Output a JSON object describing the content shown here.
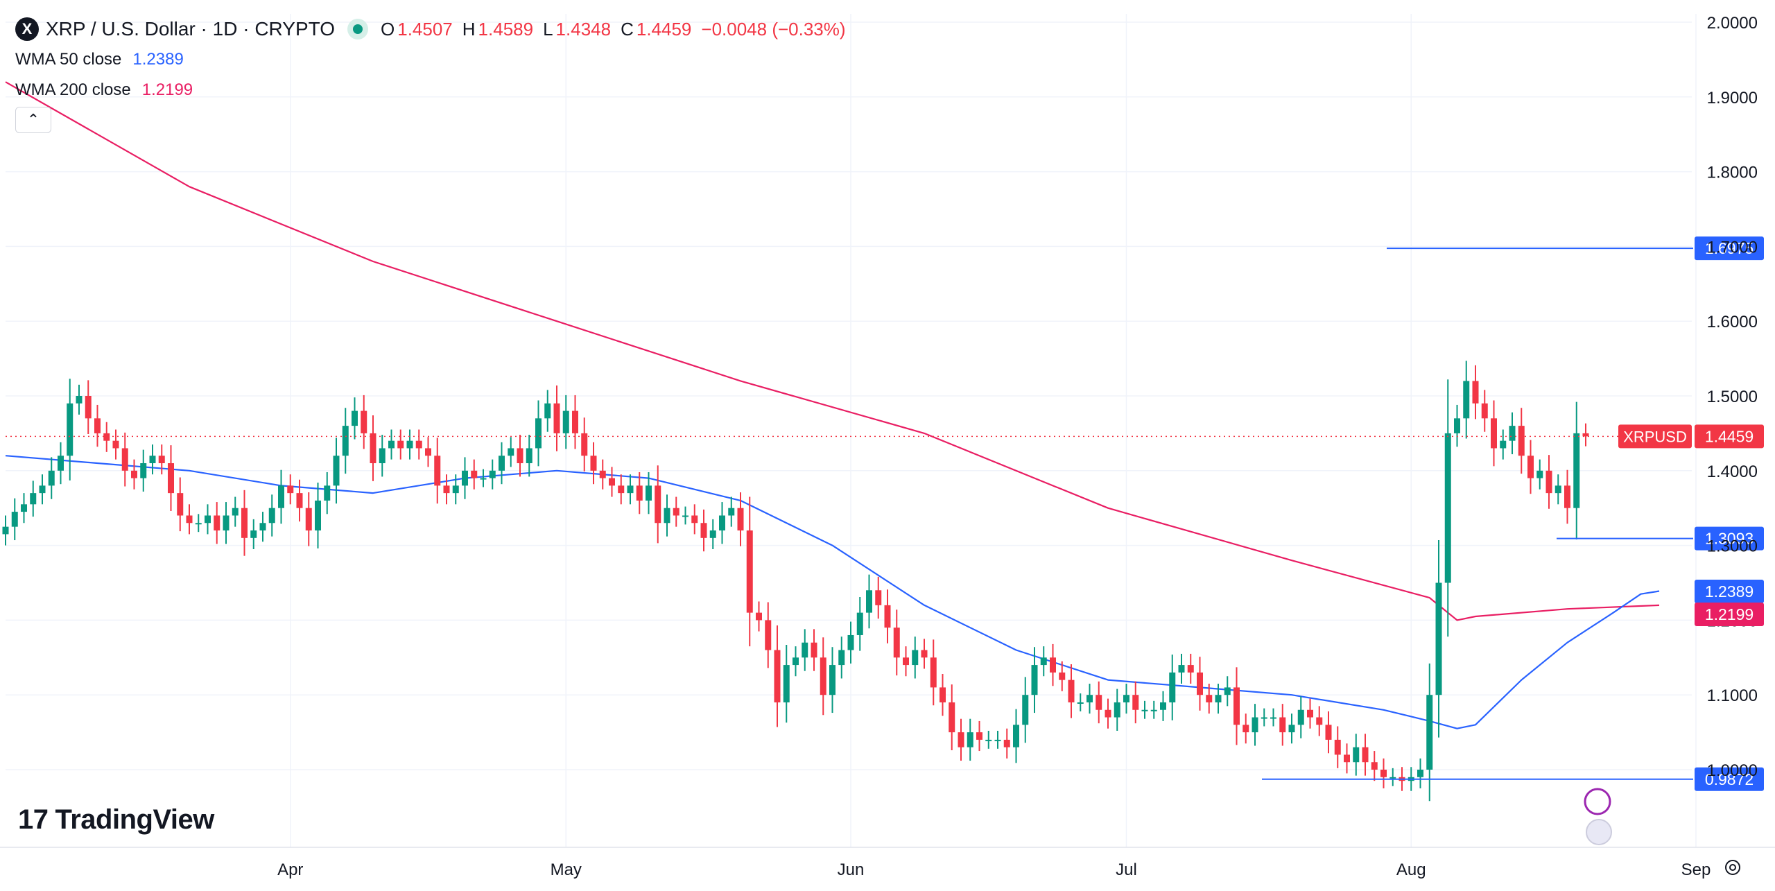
{
  "header": {
    "symbol_logo": "X",
    "title": "XRP / U.S. Dollar · 1D · CRYPTO",
    "ohlc": [
      {
        "key": "O",
        "value": "1.4507"
      },
      {
        "key": "H",
        "value": "1.4589"
      },
      {
        "key": "L",
        "value": "1.4348"
      },
      {
        "key": "C",
        "value": "1.4459"
      }
    ],
    "change": "−0.0048 (−0.33%)"
  },
  "indicators": [
    {
      "name": "WMA 50 close",
      "value": "1.2389",
      "color": "#2962ff"
    },
    {
      "name": "WMA 200 close",
      "value": "1.2199",
      "color": "#e91e63"
    }
  ],
  "collapse_icon": "chevron-up-icon",
  "brand": {
    "name": "TradingView"
  },
  "colors": {
    "up": "#089981",
    "down": "#f23645",
    "level": "#2962ff",
    "wma50": "#2962ff",
    "wma200": "#e91e63",
    "grid": "#f0f3fa"
  },
  "chart_data": {
    "type": "candlestick",
    "title": "XRP / U.S. Dollar · 1D · CRYPTO",
    "y_axis": {
      "min": 0.9,
      "max": 2.0,
      "ticks": [
        "2.0000",
        "1.9000",
        "1.8000",
        "1.7000",
        "1.6000",
        "1.5000",
        "1.4000",
        "1.3000",
        "1.2000",
        "1.1000",
        "1.0000"
      ]
    },
    "x_axis": {
      "labels": [
        {
          "label": "Apr",
          "date": "2021-04-01"
        },
        {
          "label": "May",
          "date": "2021-05-01"
        },
        {
          "label": "Jun",
          "date": "2021-06-01"
        },
        {
          "label": "Jul",
          "date": "2021-07-01"
        },
        {
          "label": "Aug",
          "date": "2021-08-01"
        },
        {
          "label": "Sep",
          "date": "2021-09-01"
        }
      ]
    },
    "start_date": "2021-03-01",
    "closes": [
      1.325,
      1.345,
      1.355,
      1.37,
      1.38,
      1.4,
      1.42,
      1.49,
      1.5,
      1.47,
      1.45,
      1.44,
      1.43,
      1.4,
      1.39,
      1.41,
      1.42,
      1.41,
      1.37,
      1.34,
      1.33,
      1.33,
      1.34,
      1.32,
      1.34,
      1.35,
      1.31,
      1.32,
      1.33,
      1.35,
      1.38,
      1.37,
      1.35,
      1.32,
      1.36,
      1.38,
      1.42,
      1.46,
      1.48,
      1.45,
      1.41,
      1.43,
      1.44,
      1.43,
      1.44,
      1.43,
      1.42,
      1.38,
      1.37,
      1.38,
      1.4,
      1.39,
      1.39,
      1.4,
      1.42,
      1.43,
      1.41,
      1.43,
      1.47,
      1.49,
      1.45,
      1.48,
      1.45,
      1.42,
      1.4,
      1.39,
      1.38,
      1.37,
      1.38,
      1.36,
      1.38,
      1.33,
      1.35,
      1.34,
      1.34,
      1.33,
      1.31,
      1.32,
      1.34,
      1.35,
      1.32,
      1.21,
      1.2,
      1.16,
      1.09,
      1.14,
      1.15,
      1.17,
      1.15,
      1.1,
      1.14,
      1.16,
      1.18,
      1.21,
      1.24,
      1.22,
      1.19,
      1.15,
      1.14,
      1.16,
      1.15,
      1.11,
      1.09,
      1.05,
      1.03,
      1.05,
      1.04,
      1.04,
      1.04,
      1.03,
      1.06,
      1.1,
      1.14,
      1.15,
      1.13,
      1.12,
      1.09,
      1.09,
      1.1,
      1.08,
      1.07,
      1.09,
      1.1,
      1.08,
      1.08,
      1.08,
      1.09,
      1.13,
      1.14,
      1.13,
      1.1,
      1.09,
      1.1,
      1.11,
      1.06,
      1.05,
      1.07,
      1.07,
      1.07,
      1.05,
      1.06,
      1.08,
      1.07,
      1.06,
      1.04,
      1.02,
      1.01,
      1.03,
      1.01,
      1.0,
      0.99,
      0.99,
      0.985,
      0.99,
      1.0,
      1.1,
      1.25,
      1.45,
      1.47,
      1.52,
      1.49,
      1.47,
      1.43,
      1.44,
      1.46,
      1.42,
      1.39,
      1.4,
      1.37,
      1.38,
      1.35,
      1.45,
      1.4459
    ],
    "wma50_end": 1.2389,
    "wma200_end": 1.2199,
    "wma50_approx": [
      [
        0,
        1.42
      ],
      [
        10,
        1.41
      ],
      [
        20,
        1.4
      ],
      [
        30,
        1.38
      ],
      [
        40,
        1.37
      ],
      [
        50,
        1.39
      ],
      [
        60,
        1.4
      ],
      [
        70,
        1.39
      ],
      [
        80,
        1.36
      ],
      [
        90,
        1.3
      ],
      [
        100,
        1.22
      ],
      [
        110,
        1.16
      ],
      [
        120,
        1.12
      ],
      [
        130,
        1.11
      ],
      [
        140,
        1.1
      ],
      [
        150,
        1.08
      ],
      [
        155,
        1.065
      ],
      [
        158,
        1.055
      ],
      [
        160,
        1.06
      ],
      [
        165,
        1.12
      ],
      [
        170,
        1.17
      ],
      [
        175,
        1.21
      ],
      [
        178,
        1.235
      ],
      [
        180,
        1.2389
      ]
    ],
    "wma200_approx": [
      [
        0,
        1.92
      ],
      [
        20,
        1.78
      ],
      [
        40,
        1.68
      ],
      [
        60,
        1.6
      ],
      [
        80,
        1.52
      ],
      [
        100,
        1.45
      ],
      [
        120,
        1.35
      ],
      [
        140,
        1.28
      ],
      [
        155,
        1.23
      ],
      [
        158,
        1.2
      ],
      [
        160,
        1.205
      ],
      [
        170,
        1.215
      ],
      [
        180,
        1.2199
      ]
    ],
    "levels": [
      {
        "value": 1.6975,
        "label": "1.6975"
      },
      {
        "value": 1.3093,
        "label": "1.3093"
      },
      {
        "value": 0.9872,
        "label": "0.9872"
      }
    ],
    "price_tags": [
      {
        "name": "XRPUSD",
        "value": "1.4459",
        "color": "#f23645"
      },
      {
        "value": "1.2389",
        "color": "#2962ff"
      },
      {
        "value": "1.2199",
        "color": "#e91e63"
      }
    ]
  }
}
